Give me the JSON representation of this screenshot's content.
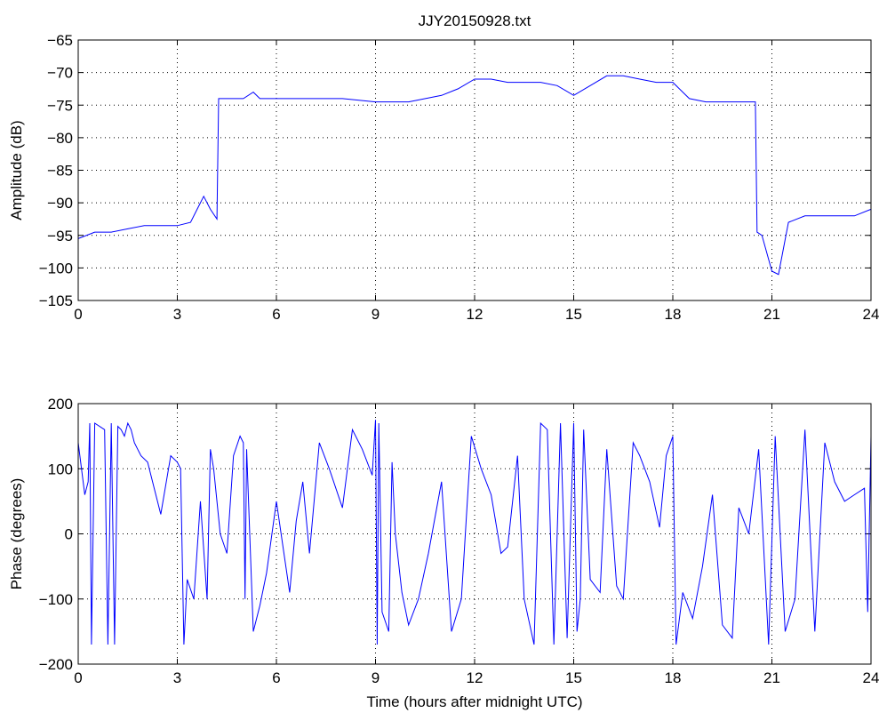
{
  "chart_data": [
    {
      "type": "line",
      "title": "JJY20150928.txt",
      "xlabel": "",
      "ylabel": "Amplitude (dB)",
      "xlim": [
        0,
        24
      ],
      "ylim": [
        -105,
        -65
      ],
      "xticks": [
        0,
        3,
        6,
        9,
        12,
        15,
        18,
        21,
        24
      ],
      "yticks": [
        -105,
        -100,
        -95,
        -90,
        -85,
        -80,
        -75,
        -70,
        -65
      ],
      "grid": true,
      "line_color": "#0000ff",
      "series": [
        {
          "x": [
            0,
            0.5,
            1,
            1.5,
            2,
            2.5,
            3,
            3.4,
            3.6,
            3.8,
            4.0,
            4.2,
            4.25,
            4.5,
            5,
            5.3,
            5.5,
            6,
            7,
            8,
            9,
            10,
            11,
            11.5,
            12,
            12.5,
            13,
            14,
            14.5,
            15,
            15.5,
            16,
            16.5,
            17,
            17.5,
            18,
            18.5,
            19,
            19.5,
            20,
            20.5,
            20.55,
            20.7,
            21,
            21.2,
            21.5,
            22,
            22.5,
            23,
            23.5,
            24
          ],
          "y": [
            -95.5,
            -94.5,
            -94.5,
            -94,
            -93.5,
            -93.5,
            -93.5,
            -93,
            -91,
            -89,
            -91,
            -92.5,
            -74,
            -74,
            -74,
            -73,
            -74,
            -74,
            -74,
            -74,
            -74.5,
            -74.5,
            -73.5,
            -72.5,
            -71,
            -71,
            -71.5,
            -71.5,
            -72,
            -73.5,
            -72,
            -70.5,
            -70.5,
            -71,
            -71.5,
            -71.5,
            -74,
            -74.5,
            -74.5,
            -74.5,
            -74.5,
            -94.5,
            -95,
            -100.5,
            -101,
            -93,
            -92,
            -92,
            -92,
            -92,
            -91
          ]
        }
      ]
    },
    {
      "type": "line",
      "title": "",
      "xlabel": "Time (hours after midnight UTC)",
      "ylabel": "Phase (degrees)",
      "xlim": [
        0,
        24
      ],
      "ylim": [
        -200,
        200
      ],
      "xticks": [
        0,
        3,
        6,
        9,
        12,
        15,
        18,
        21,
        24
      ],
      "yticks": [
        -200,
        -100,
        0,
        100,
        200
      ],
      "grid": true,
      "line_color": "#0000ff",
      "series": [
        {
          "x": [
            0,
            0.1,
            0.2,
            0.3,
            0.35,
            0.4,
            0.5,
            0.8,
            0.9,
            1.0,
            1.1,
            1.2,
            1.3,
            1.4,
            1.5,
            1.6,
            1.7,
            1.8,
            1.9,
            2.1,
            2.3,
            2.5,
            2.8,
            3.0,
            3.1,
            3.2,
            3.3,
            3.5,
            3.7,
            3.9,
            4.0,
            4.1,
            4.3,
            4.5,
            4.7,
            4.9,
            5.0,
            5.05,
            5.1,
            5.3,
            5.5,
            5.7,
            6.0,
            6.2,
            6.4,
            6.6,
            6.8,
            7.0,
            7.3,
            7.6,
            8.0,
            8.3,
            8.6,
            8.9,
            9.0,
            9.05,
            9.1,
            9.2,
            9.4,
            9.5,
            9.6,
            9.8,
            10.0,
            10.3,
            10.6,
            11.0,
            11.3,
            11.6,
            11.9,
            12.2,
            12.5,
            12.8,
            13.0,
            13.3,
            13.5,
            13.8,
            14.0,
            14.2,
            14.4,
            14.6,
            14.8,
            15.0,
            15.1,
            15.2,
            15.3,
            15.5,
            15.8,
            16.0,
            16.3,
            16.5,
            16.8,
            17.0,
            17.3,
            17.6,
            17.8,
            18.0,
            18.1,
            18.3,
            18.6,
            18.9,
            19.2,
            19.5,
            19.8,
            20.0,
            20.3,
            20.6,
            20.9,
            21.1,
            21.4,
            21.7,
            22.0,
            22.3,
            22.6,
            22.9,
            23.2,
            23.5,
            23.8,
            23.9,
            24.0
          ],
          "y": [
            140,
            100,
            60,
            80,
            170,
            -170,
            170,
            160,
            -170,
            170,
            -170,
            165,
            160,
            150,
            170,
            160,
            140,
            130,
            120,
            110,
            70,
            30,
            120,
            110,
            100,
            -170,
            -70,
            -100,
            50,
            -100,
            130,
            100,
            0,
            -30,
            120,
            150,
            140,
            -100,
            130,
            -150,
            -110,
            -60,
            50,
            -20,
            -90,
            20,
            80,
            -30,
            140,
            100,
            40,
            160,
            130,
            90,
            175,
            -170,
            170,
            -120,
            -150,
            110,
            0,
            -90,
            -140,
            -100,
            -30,
            80,
            -150,
            -100,
            150,
            100,
            60,
            -30,
            -20,
            120,
            -100,
            -170,
            170,
            160,
            -170,
            170,
            -160,
            170,
            -150,
            -100,
            160,
            -70,
            -90,
            130,
            -80,
            -100,
            140,
            120,
            80,
            10,
            120,
            150,
            -170,
            -90,
            -130,
            -50,
            60,
            -140,
            -160,
            40,
            0,
            130,
            -170,
            150,
            -150,
            -100,
            160,
            -150,
            140,
            80,
            50,
            60,
            70,
            -120,
            150
          ]
        }
      ]
    }
  ]
}
